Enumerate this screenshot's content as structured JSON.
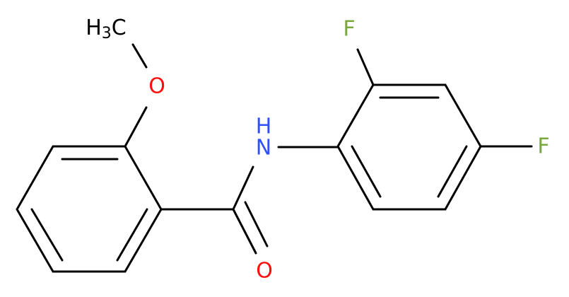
{
  "atoms": {
    "methyl": {
      "h": "H",
      "sub": "3",
      "c": "C"
    },
    "ether_o": "O",
    "amide_n": "N",
    "amide_h": "H",
    "carbonyl_o": "O",
    "fluorine_top": "F",
    "fluorine_right": "F"
  }
}
